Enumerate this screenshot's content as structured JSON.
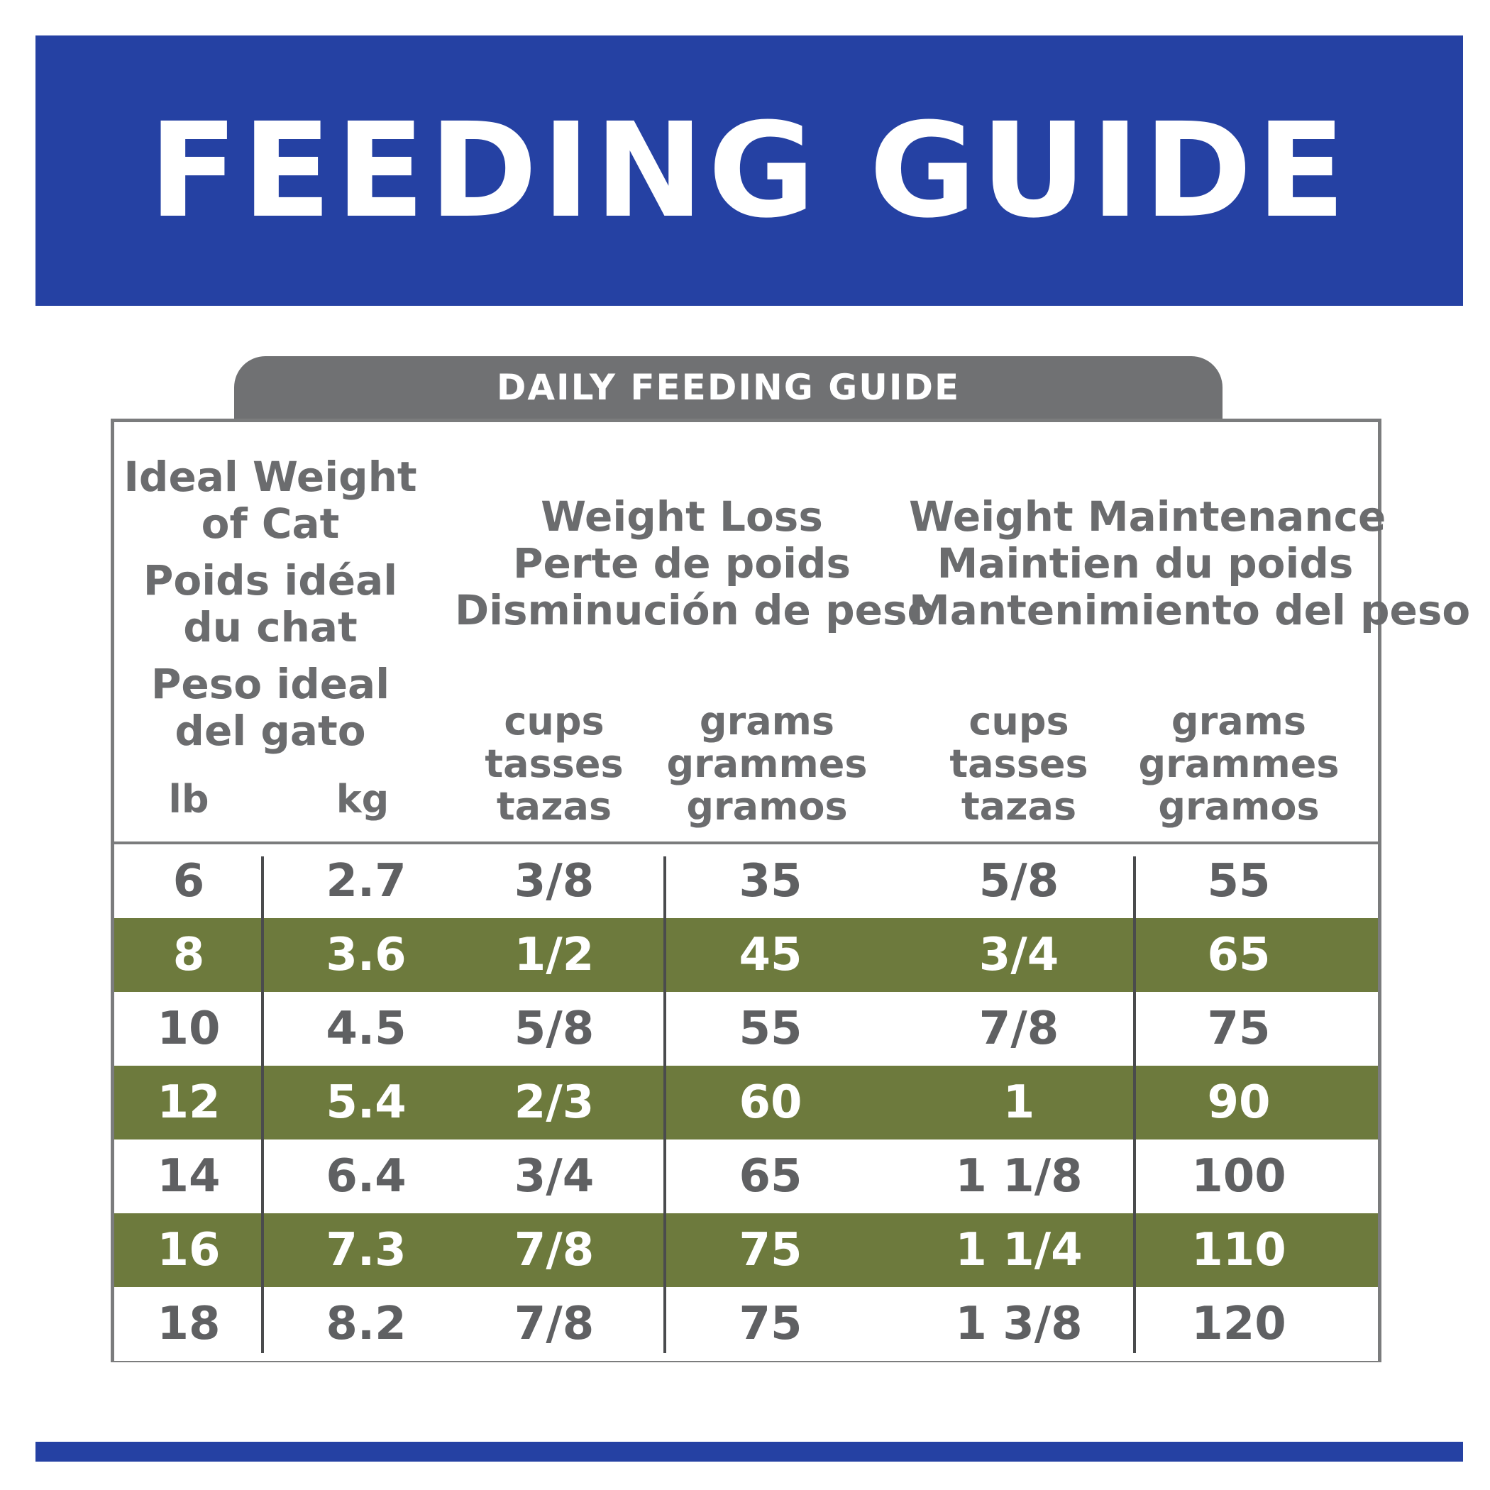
{
  "banner": {
    "title": "FEEDING GUIDE"
  },
  "panel": {
    "title": "DAILY FEEDING GUIDE"
  },
  "colors": {
    "banner": "#2541a3",
    "tab": "#707173",
    "row_highlight": "#6d7a3d",
    "text_gray": "#5f6062"
  },
  "table": {
    "header": {
      "ideal_weight": [
        "Ideal Weight",
        "of Cat",
        "Poids idéal",
        "du chat",
        "Peso ideal",
        "del gato"
      ],
      "weight_loss": [
        "Weight Loss",
        "Perte de poids",
        "Disminución de peso"
      ],
      "weight_maintenance": [
        "Weight Maintenance",
        "Maintien du poids",
        "Mantenimiento del peso"
      ],
      "lb": "lb",
      "kg": "kg",
      "cups": [
        "cups",
        "tasses",
        "tazas"
      ],
      "grams": [
        "grams",
        "grammes",
        "gramos"
      ]
    },
    "rows": [
      {
        "lb": "6",
        "kg": "2.7",
        "loss_cups": "3/8",
        "loss_grams": "35",
        "maint_cups": "5/8",
        "maint_grams": "55"
      },
      {
        "lb": "8",
        "kg": "3.6",
        "loss_cups": "1/2",
        "loss_grams": "45",
        "maint_cups": "3/4",
        "maint_grams": "65"
      },
      {
        "lb": "10",
        "kg": "4.5",
        "loss_cups": "5/8",
        "loss_grams": "55",
        "maint_cups": "7/8",
        "maint_grams": "75"
      },
      {
        "lb": "12",
        "kg": "5.4",
        "loss_cups": "2/3",
        "loss_grams": "60",
        "maint_cups": "1",
        "maint_grams": "90"
      },
      {
        "lb": "14",
        "kg": "6.4",
        "loss_cups": "3/4",
        "loss_grams": "65",
        "maint_cups": "1 1/8",
        "maint_grams": "100"
      },
      {
        "lb": "16",
        "kg": "7.3",
        "loss_cups": "7/8",
        "loss_grams": "75",
        "maint_cups": "1 1/4",
        "maint_grams": "110"
      },
      {
        "lb": "18",
        "kg": "8.2",
        "loss_cups": "7/8",
        "loss_grams": "75",
        "maint_cups": "1 3/8",
        "maint_grams": "120"
      }
    ]
  }
}
